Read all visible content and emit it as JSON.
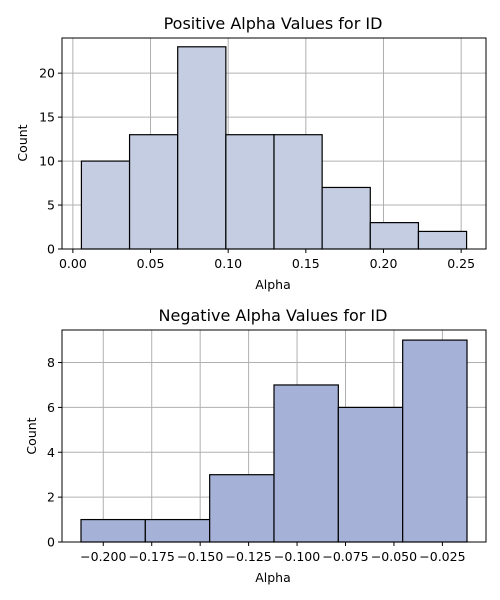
{
  "chart_data": [
    {
      "type": "bar",
      "title": "Positive Alpha Values for ID",
      "xlabel": "Alpha",
      "ylabel": "Count",
      "bin_edges": [
        0.0055,
        0.0365,
        0.0675,
        0.0985,
        0.1295,
        0.1605,
        0.1915,
        0.2225,
        0.2535
      ],
      "values": [
        10,
        13,
        23,
        13,
        13,
        7,
        3,
        2
      ],
      "xlim": [
        -0.007,
        0.266
      ],
      "ylim": [
        0,
        24
      ],
      "xticks": [
        0.0,
        0.05,
        0.1,
        0.15,
        0.2,
        0.25
      ],
      "xtick_labels": [
        "0.00",
        "0.05",
        "0.10",
        "0.15",
        "0.20",
        "0.25"
      ],
      "yticks": [
        0,
        5,
        10,
        15,
        20
      ],
      "ytick_labels": [
        "0",
        "5",
        "10",
        "15",
        "20"
      ],
      "grid": true,
      "bar_color": "#c4cde2",
      "edge_color": "#000000"
    },
    {
      "type": "bar",
      "title": "Negative Alpha Values for ID",
      "xlabel": "Alpha",
      "ylabel": "Count",
      "bin_edges": [
        -0.2115,
        -0.1783,
        -0.1451,
        -0.1119,
        -0.0787,
        -0.0455,
        -0.0123
      ],
      "values": [
        1,
        1,
        3,
        7,
        6,
        9
      ],
      "xlim": [
        -0.2213,
        -0.0025
      ],
      "ylim": [
        0,
        9.45
      ],
      "xticks": [
        -0.2,
        -0.175,
        -0.15,
        -0.125,
        -0.1,
        -0.075,
        -0.05,
        -0.025
      ],
      "xtick_labels": [
        "−0.200",
        "−0.175",
        "−0.150",
        "−0.125",
        "−0.100",
        "−0.075",
        "−0.050",
        "−0.025"
      ],
      "yticks": [
        0,
        2,
        4,
        6,
        8
      ],
      "ytick_labels": [
        "0",
        "2",
        "4",
        "6",
        "8"
      ],
      "grid": true,
      "bar_color": "#a5b1d6",
      "edge_color": "#000000"
    }
  ]
}
